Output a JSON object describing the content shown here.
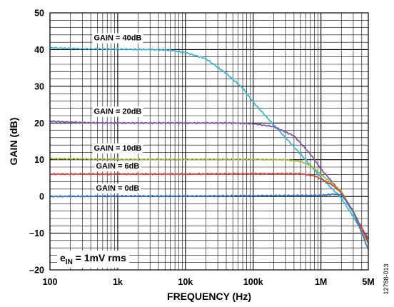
{
  "chart_data": {
    "type": "line",
    "title": "",
    "xlabel": "FREQUENCY (Hz)",
    "ylabel": "GAIN (dB)",
    "x_scale": "log",
    "xlim": [
      100,
      5000000
    ],
    "ylim": [
      -20,
      50
    ],
    "grid": true,
    "x_ticks": [
      {
        "value": 100,
        "label": "100"
      },
      {
        "value": 1000,
        "label": "1k"
      },
      {
        "value": 10000,
        "label": "10k"
      },
      {
        "value": 100000,
        "label": "100k"
      },
      {
        "value": 1000000,
        "label": "1M"
      },
      {
        "value": 5000000,
        "label": "5M"
      }
    ],
    "y_ticks": [
      {
        "value": 50,
        "label": "50"
      },
      {
        "value": 40,
        "label": "40"
      },
      {
        "value": 30,
        "label": "30"
      },
      {
        "value": 20,
        "label": "20"
      },
      {
        "value": 10,
        "label": "10"
      },
      {
        "value": 0,
        "label": "0"
      },
      {
        "value": -10,
        "label": "–10"
      },
      {
        "value": -20,
        "label": "–20"
      }
    ],
    "annotation": {
      "main": "e",
      "sub": "IN",
      "rest": " = 1mV rms"
    },
    "figure_id": "12788-013",
    "series": [
      {
        "name": "GAIN = 40dB",
        "color": "#41b4cf",
        "label_anchor": {
          "x": 1000,
          "y": 42.5
        },
        "points": [
          [
            100,
            40.5
          ],
          [
            300,
            40.2
          ],
          [
            1000,
            40.1
          ],
          [
            3000,
            40.0
          ],
          [
            6000,
            39.8
          ],
          [
            10000,
            39.2
          ],
          [
            20000,
            37.5
          ],
          [
            40000,
            33.5
          ],
          [
            70000,
            29.5
          ],
          [
            100000,
            25.7
          ],
          [
            200000,
            19.5
          ],
          [
            400000,
            13.5
          ],
          [
            700000,
            8.5
          ],
          [
            1000000,
            5.2
          ],
          [
            2000000,
            -0.5
          ],
          [
            3000000,
            -5.5
          ],
          [
            5000000,
            -12.5
          ]
        ]
      },
      {
        "name": "GAIN = 20dB",
        "color": "#7e57a8",
        "label_anchor": {
          "x": 1000,
          "y": 22.5
        },
        "points": [
          [
            100,
            20.5
          ],
          [
            300,
            20.1
          ],
          [
            1000,
            20.0
          ],
          [
            10000,
            20.0
          ],
          [
            50000,
            20.0
          ],
          [
            100000,
            19.8
          ],
          [
            200000,
            19.0
          ],
          [
            400000,
            16.5
          ],
          [
            700000,
            11.5
          ],
          [
            1000000,
            7.5
          ],
          [
            2000000,
            1.0
          ],
          [
            3000000,
            -4.5
          ],
          [
            5000000,
            -11.5
          ]
        ]
      },
      {
        "name": "GAIN = 10dB",
        "color": "#9dbb45",
        "label_anchor": {
          "x": 1000,
          "y": 12.5
        },
        "points": [
          [
            100,
            10.3
          ],
          [
            1000,
            10.1
          ],
          [
            10000,
            10.1
          ],
          [
            100000,
            10.1
          ],
          [
            300000,
            10.0
          ],
          [
            500000,
            9.5
          ],
          [
            700000,
            8.5
          ],
          [
            1000000,
            6.0
          ],
          [
            2000000,
            1.5
          ],
          [
            3000000,
            -4.5
          ],
          [
            5000000,
            -13.0
          ]
        ]
      },
      {
        "name": "GAIN = 6dB",
        "color": "#d1453f",
        "label_anchor": {
          "x": 1000,
          "y": 7.6
        },
        "points": [
          [
            100,
            6.1
          ],
          [
            1000,
            6.1
          ],
          [
            10000,
            6.1
          ],
          [
            100000,
            6.2
          ],
          [
            500000,
            6.2
          ],
          [
            800000,
            5.6
          ],
          [
            1000000,
            4.8
          ],
          [
            1500000,
            3.0
          ],
          [
            2000000,
            1.0
          ],
          [
            3000000,
            -4.0
          ],
          [
            5000000,
            -12.5
          ]
        ]
      },
      {
        "name": "GAIN = 0dB",
        "color": "#3b76c1",
        "label_anchor": {
          "x": 1000,
          "y": 1.6
        },
        "points": [
          [
            100,
            0.0
          ],
          [
            1000,
            0.1
          ],
          [
            10000,
            0.1
          ],
          [
            100000,
            0.2
          ],
          [
            1000000,
            0.3
          ],
          [
            1500000,
            0.6
          ],
          [
            2000000,
            0.5
          ],
          [
            3000000,
            -4.0
          ],
          [
            5000000,
            -14.5
          ]
        ]
      }
    ]
  }
}
